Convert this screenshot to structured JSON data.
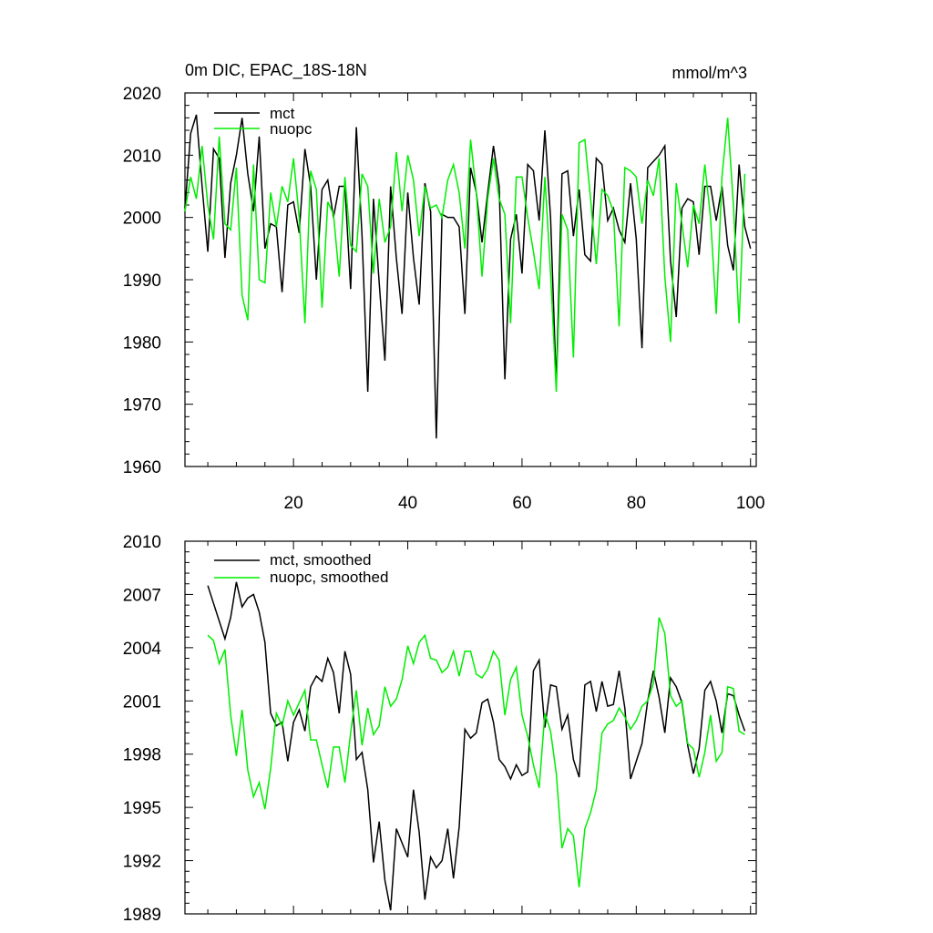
{
  "chart_data": [
    {
      "type": "line",
      "title": "0m DIC, EPAC_18S-18N",
      "units": "mmol/m^3",
      "xlim": [
        1,
        101
      ],
      "ylim": [
        1960,
        2020
      ],
      "xticks": [
        20,
        40,
        60,
        80,
        100
      ],
      "yticks": [
        1960,
        1970,
        1980,
        1990,
        2000,
        2010,
        2020
      ],
      "x_start": 1,
      "legend_position": "top-left",
      "series": [
        {
          "name": "mct",
          "color": "#000000",
          "values": [
            2001.5,
            2013.5,
            2016.5,
            2005,
            1994.5,
            2011,
            2009.5,
            1993.5,
            2005.5,
            2010,
            2016,
            2007,
            2001,
            2013,
            1995,
            1999,
            1998.5,
            1988,
            2002,
            2002.5,
            1997.5,
            2011,
            2005,
            1990,
            2004.5,
            2006,
            2000,
            2005,
            2005,
            1988.5,
            2014.5,
            1997,
            1972,
            2003,
            1989.5,
            1977,
            2005,
            1993.5,
            1984.5,
            2004,
            1993.5,
            1986,
            2005.5,
            2001,
            1964.5,
            2000.5,
            2000,
            2000,
            1998.5,
            1984.5,
            2008,
            2004,
            1996,
            2004,
            2011.5,
            2005,
            1974,
            1996.5,
            2000.5,
            1991,
            2008.5,
            2007.5,
            1999.5,
            2014,
            2000,
            1973,
            2007,
            2007.5,
            1997,
            2004.5,
            1994,
            1993,
            2009.5,
            2008.5,
            1999.5,
            2001.5,
            1998,
            1996,
            2005.5,
            1996.5,
            1979,
            2008,
            2009,
            2010,
            2011.5,
            1993,
            1984,
            2001.5,
            2003,
            2002.5,
            1994,
            2005,
            2005,
            1999.5,
            2005,
            1995.5,
            1991.5,
            2008.5,
            1998.5,
            1995
          ]
        },
        {
          "name": "nuopc",
          "color": "#00ee00",
          "values": [
            2001,
            2006.5,
            2003,
            2011.5,
            2002,
            1996.5,
            2013,
            1999,
            1998,
            2008,
            1987.5,
            1983.5,
            2008.5,
            1990,
            1989.5,
            2004,
            1998.5,
            2005,
            2002.5,
            2009.5,
            2000,
            1983,
            2007.5,
            2004.5,
            1985.5,
            2002.5,
            2000.5,
            1990.5,
            2006.5,
            1995.5,
            1994.5,
            2007,
            2005,
            1991,
            2003,
            1996,
            1998.5,
            2010.5,
            2001,
            2010,
            2006,
            1997,
            2005,
            2001.5,
            2002,
            2000,
            2006,
            2008.5,
            2004,
            1995,
            2012.5,
            2004,
            1990.5,
            2003,
            2009.5,
            2003,
            2000.5,
            1983,
            2006.5,
            2006.5,
            2000,
            1994.5,
            1988.5,
            2006.5,
            1991,
            1972,
            2000.5,
            1998,
            1977.5,
            2012,
            2012.5,
            2003,
            1992.5,
            2004.5,
            2003.5,
            2001,
            1982.5,
            2008,
            2007.5,
            2006.5,
            1999,
            2006,
            2003.5,
            2009.5,
            1990.5,
            1980,
            2005.5,
            1999,
            1992,
            2002,
            1999,
            2008.5,
            2000,
            1984.5,
            2006.5,
            2016,
            2002,
            1983,
            2007
          ]
        }
      ]
    },
    {
      "type": "line",
      "title": "",
      "xlim": [
        1,
        101
      ],
      "ylim": [
        1989,
        2010
      ],
      "yticks": [
        1989,
        1992,
        1995,
        1998,
        2001,
        2004,
        2007,
        2010
      ],
      "x_start": 5,
      "legend_position": "top-left",
      "series": [
        {
          "name": "mct, smoothed",
          "color": "#000000",
          "values": [
            2007.5,
            2006.5,
            2005.5,
            2004.5,
            2005.7,
            2007.7,
            2006.3,
            2006.8,
            2007,
            2006,
            2004.3,
            2000.3,
            1999.6,
            1999.8,
            1997.6,
            1999.8,
            2000.5,
            1999.3,
            2001.8,
            2002.4,
            2002.1,
            2003.4,
            2002.6,
            2000.3,
            2003.8,
            2002.5,
            1997.7,
            1998.1,
            1996,
            1991.9,
            1994.2,
            1990.9,
            1989.2,
            1993.8,
            1993,
            1992.2,
            1996,
            1993.6,
            1989.8,
            1992.2,
            1991.6,
            1992,
            1993.8,
            1991,
            1993.9,
            1999.4,
            1998.9,
            1999.2,
            2000.9,
            2001.1,
            1999.8,
            1997.7,
            1997.3,
            1996.6,
            1997.4,
            1996.8,
            1997,
            2002.7,
            2003.3,
            1999.5,
            2001.9,
            2001.8,
            1999.4,
            2000.2,
            1997.7,
            1996.7,
            2001.9,
            2002.1,
            2000.4,
            2002.1,
            2000.7,
            2000.8,
            2002.7,
            2000.6,
            1996.6,
            1997.6,
            1998.6,
            2001,
            2002.7,
            2001.2,
            1999.2,
            2002.3,
            2001.8,
            2000.9,
            1998.5,
            1996.9,
            1998.3,
            2001.6,
            2002.1,
            2001,
            1999.2,
            2001.4,
            2001.3,
            2000.2,
            1999.3
          ]
        },
        {
          "name": "nuopc, smoothed",
          "color": "#00ee00",
          "values": [
            2004.7,
            2004.4,
            2003.1,
            2003.9,
            2000.2,
            1997.9,
            2000.5,
            1997.1,
            1995.6,
            1996.4,
            1994.9,
            1997.2,
            2000.3,
            1999.6,
            2001,
            2000.2,
            2000.9,
            2001.6,
            1998.8,
            1998.8,
            1997.4,
            1996.1,
            1998.4,
            1998.4,
            1996.4,
            1999.2,
            2001.6,
            1998.5,
            2000.6,
            1999.1,
            1999.6,
            2001.8,
            2000.7,
            2001.1,
            2002.2,
            2004.1,
            2003.1,
            2004.3,
            2004.7,
            2003.4,
            2003.3,
            2002.6,
            2002.9,
            2003.8,
            2002.4,
            2003.8,
            2003.8,
            2002.5,
            2002.3,
            2002.8,
            2003.8,
            2003.3,
            2000.2,
            2002.2,
            2002.9,
            2000.2,
            1999,
            1997.4,
            1996.1,
            2000.3,
            1999.3,
            1996.9,
            1992.7,
            1993.8,
            1993.4,
            1990.5,
            1993.8,
            1994.7,
            1996,
            1999.2,
            1999.7,
            1999.9,
            2000.6,
            2000.1,
            1999.4,
            1999.9,
            2000.7,
            2001,
            2002,
            2005.7,
            2004.8,
            2001.3,
            2000.7,
            2001,
            1998.6,
            1998.3,
            1996.7,
            1998.1,
            2000.2,
            1997.6,
            1998.1,
            2001.8,
            2001.7,
            1999.3,
            1999.1
          ]
        }
      ]
    }
  ]
}
